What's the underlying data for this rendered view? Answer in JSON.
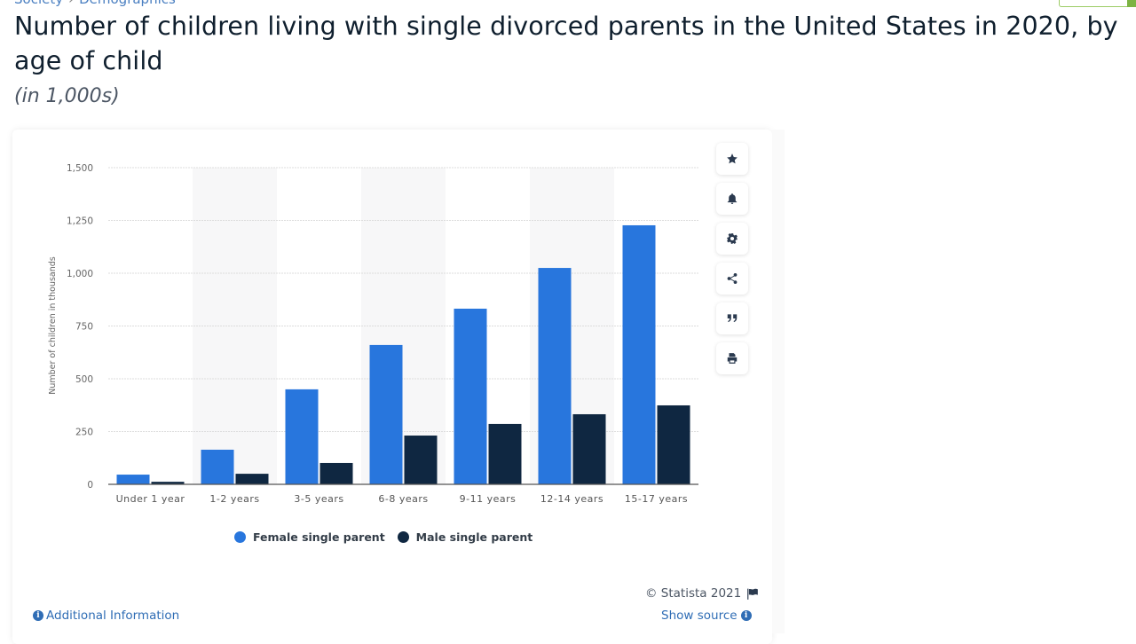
{
  "breadcrumb": [
    "Society",
    "Demographics"
  ],
  "title": "Number of children living with single divorced parents in the United States in 2020, by age of child",
  "subtitle": "(in 1,000s)",
  "toolbar": [
    {
      "name": "favorite",
      "icon": "star-icon"
    },
    {
      "name": "notification",
      "icon": "bell-icon"
    },
    {
      "name": "settings",
      "icon": "gear-icon"
    },
    {
      "name": "share",
      "icon": "share-icon"
    },
    {
      "name": "cite",
      "icon": "quote-icon"
    },
    {
      "name": "print",
      "icon": "print-icon"
    }
  ],
  "footer": {
    "copyright": "© Statista 2021",
    "show_source": "Show source",
    "additional_info": "Additional Information"
  },
  "colors": {
    "female": "#2876dd",
    "male": "#0f2741",
    "band": "#f7f7f8",
    "grid": "#dddddd"
  },
  "chart_data": {
    "type": "bar",
    "title": "Number of children living with single divorced parents in the United States in 2020, by age of child",
    "subtitle": "(in 1,000s)",
    "xlabel": "",
    "ylabel": "Number of children in thousands",
    "ylim": [
      0,
      1500
    ],
    "yticks": [
      0,
      250,
      500,
      750,
      1000,
      1250,
      1500
    ],
    "ytick_labels": [
      "0",
      "250",
      "500",
      "750",
      "1,000",
      "1,250",
      "1,500"
    ],
    "grid": true,
    "legend": "bottom",
    "categories": [
      "Under 1 year",
      "1-2 years",
      "3-5 years",
      "6-8 years",
      "9-11 years",
      "12-14 years",
      "15-17 years"
    ],
    "series": [
      {
        "name": "Female single parent",
        "values": [
          46,
          164,
          450,
          660,
          832,
          1025,
          1227
        ]
      },
      {
        "name": "Male single parent",
        "values": [
          12,
          50,
          101,
          231,
          286,
          332,
          374
        ]
      }
    ]
  }
}
